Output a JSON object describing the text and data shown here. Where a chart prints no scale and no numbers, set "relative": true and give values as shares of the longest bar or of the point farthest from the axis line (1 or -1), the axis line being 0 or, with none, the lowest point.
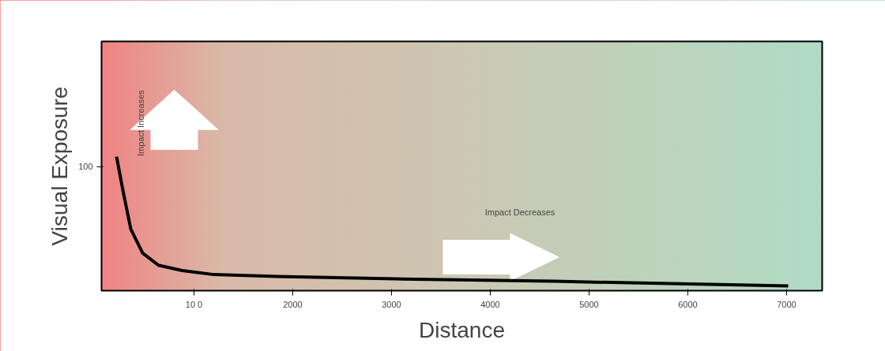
{
  "chart_data": {
    "type": "line",
    "relative": true,
    "xlabel": "Distance",
    "ylabel": "Visual Exposure",
    "x": [
      216,
      280,
      360,
      480,
      640,
      880,
      1200,
      1840,
      3040,
      4640,
      7016
    ],
    "series": [
      {
        "color": "#000000",
        "values": [
          1.0,
          0.75,
          0.46,
          0.28,
          0.19,
          0.15,
          0.12,
          0.106,
          0.088,
          0.07,
          0.035
        ]
      }
    ],
    "xlim": [
      64,
      7360
    ],
    "xticks": [
      {
        "value": 1000,
        "label": "10 0"
      },
      2000,
      3000,
      4000,
      5000,
      6000,
      7000
    ],
    "annotations": [
      "100",
      "Impact Increases",
      "Impact Decreases"
    ],
    "grid": false,
    "marker": "none",
    "line_style": "solid"
  }
}
